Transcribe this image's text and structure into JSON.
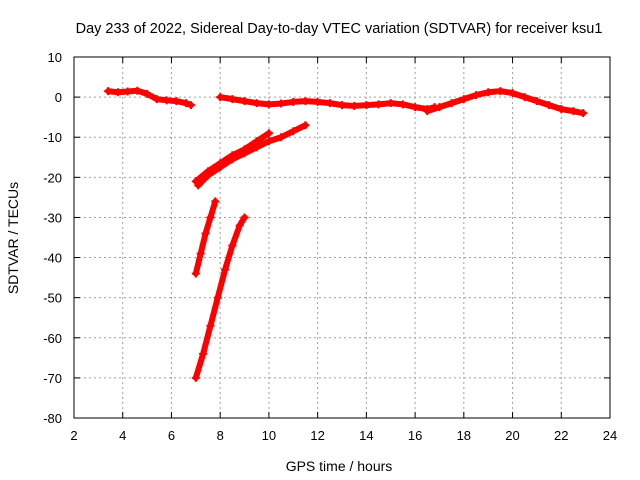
{
  "chart_data": {
    "type": "scatter",
    "title": "Day 233 of 2022, Sidereal Day-to-day VTEC variation (SDTVAR) for receiver ksu1",
    "xlabel": "GPS time / hours",
    "ylabel": "SDTVAR / TECUs",
    "xlim": [
      2,
      24
    ],
    "ylim": [
      -80,
      10
    ],
    "xticks": [
      2,
      4,
      6,
      8,
      10,
      12,
      14,
      16,
      18,
      20,
      22,
      24
    ],
    "yticks": [
      10,
      0,
      -10,
      -20,
      -30,
      -40,
      -50,
      -60,
      -70,
      -80
    ],
    "grid": true,
    "legend": "none",
    "series": [
      {
        "name": "segment-1",
        "color": "#ff0000",
        "points": [
          [
            3.4,
            1.5
          ],
          [
            3.8,
            1.2
          ],
          [
            4.2,
            1.4
          ],
          [
            4.6,
            1.6
          ],
          [
            5.0,
            0.8
          ],
          [
            5.4,
            -0.5
          ],
          [
            5.8,
            -0.8
          ],
          [
            6.2,
            -1.0
          ],
          [
            6.6,
            -1.5
          ],
          [
            6.8,
            -2.0
          ]
        ]
      },
      {
        "name": "segment-2",
        "color": "#ff0000",
        "points": [
          [
            8.0,
            0.0
          ],
          [
            8.5,
            -0.5
          ],
          [
            9.0,
            -1.0
          ],
          [
            9.5,
            -1.5
          ],
          [
            10.0,
            -1.8
          ],
          [
            10.5,
            -1.6
          ],
          [
            11.0,
            -1.2
          ],
          [
            11.5,
            -1.0
          ],
          [
            12.0,
            -1.2
          ],
          [
            12.5,
            -1.5
          ],
          [
            13.0,
            -2.0
          ],
          [
            13.5,
            -2.2
          ],
          [
            14.0,
            -2.0
          ],
          [
            14.5,
            -1.8
          ],
          [
            15.0,
            -1.5
          ],
          [
            15.5,
            -1.8
          ],
          [
            16.0,
            -2.5
          ],
          [
            16.5,
            -3.0
          ],
          [
            16.8,
            -2.5
          ]
        ]
      },
      {
        "name": "segment-3",
        "color": "#ff0000",
        "points": [
          [
            16.5,
            -3.5
          ],
          [
            17.0,
            -2.5
          ],
          [
            17.5,
            -1.5
          ],
          [
            18.0,
            -0.5
          ],
          [
            18.5,
            0.5
          ],
          [
            19.0,
            1.2
          ],
          [
            19.5,
            1.5
          ],
          [
            20.0,
            1.0
          ],
          [
            20.5,
            0.0
          ],
          [
            21.0,
            -1.0
          ],
          [
            21.5,
            -2.0
          ],
          [
            22.0,
            -3.0
          ],
          [
            22.5,
            -3.5
          ],
          [
            22.9,
            -4.0
          ]
        ]
      },
      {
        "name": "segment-4",
        "color": "#ff0000",
        "points": [
          [
            7.0,
            -21.0
          ],
          [
            7.5,
            -18.5
          ],
          [
            8.0,
            -16.5
          ],
          [
            8.5,
            -14.5
          ],
          [
            9.0,
            -13.0
          ],
          [
            9.5,
            -11.0
          ],
          [
            10.0,
            -9.0
          ]
        ]
      },
      {
        "name": "segment-5",
        "color": "#ff0000",
        "points": [
          [
            7.1,
            -22.0
          ],
          [
            7.5,
            -19.5
          ],
          [
            8.0,
            -17.5
          ],
          [
            8.5,
            -15.5
          ],
          [
            9.0,
            -14.0
          ],
          [
            9.5,
            -12.5
          ],
          [
            10.0,
            -11.0
          ],
          [
            10.5,
            -10.0
          ],
          [
            11.0,
            -8.5
          ],
          [
            11.5,
            -7.0
          ]
        ]
      },
      {
        "name": "segment-6",
        "color": "#ff0000",
        "points": [
          [
            7.0,
            -44.0
          ],
          [
            7.2,
            -39.0
          ],
          [
            7.4,
            -34.0
          ],
          [
            7.6,
            -30.0
          ],
          [
            7.8,
            -26.0
          ]
        ]
      },
      {
        "name": "segment-7",
        "color": "#ff0000",
        "points": [
          [
            7.0,
            -70.0
          ],
          [
            7.3,
            -64.0
          ],
          [
            7.6,
            -57.0
          ],
          [
            7.9,
            -50.0
          ],
          [
            8.2,
            -43.0
          ],
          [
            8.5,
            -37.0
          ],
          [
            8.8,
            -32.0
          ],
          [
            9.0,
            -30.0
          ]
        ]
      }
    ]
  }
}
